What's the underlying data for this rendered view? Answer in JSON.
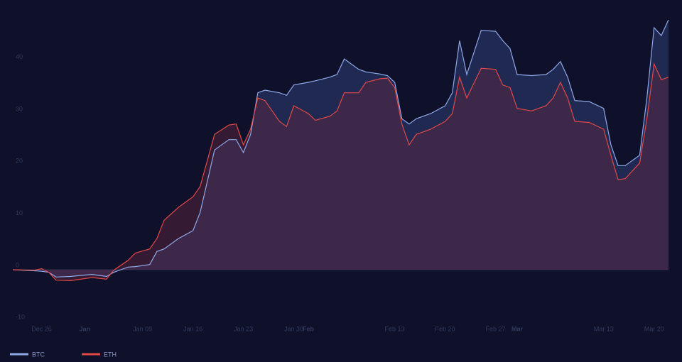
{
  "chart_data": {
    "type": "area",
    "x": [
      "Dec 22",
      "Dec 25",
      "Dec 26",
      "Dec 27",
      "Dec 28",
      "Dec 30",
      "Jan 02",
      "Jan 04",
      "Jan 05",
      "Jan 07",
      "Jan 08",
      "Jan 10",
      "Jan 11",
      "Jan 12",
      "Jan 14",
      "Jan 16",
      "Jan 17",
      "Jan 18",
      "Jan 19",
      "Jan 21",
      "Jan 22",
      "Jan 23",
      "Jan 24",
      "Jan 25",
      "Jan 26",
      "Jan 28",
      "Jan 29",
      "Jan 30",
      "Feb 01",
      "Feb 02",
      "Feb 04",
      "Feb 05",
      "Feb 06",
      "Feb 08",
      "Feb 09",
      "Feb 11",
      "Feb 12",
      "Feb 13",
      "Feb 14",
      "Feb 15",
      "Feb 16",
      "Feb 18",
      "Feb 20",
      "Feb 21",
      "Feb 22",
      "Feb 23",
      "Feb 25",
      "Feb 27",
      "Feb 28",
      "Feb 29",
      "Mar 01",
      "Mar 03",
      "Mar 05",
      "Mar 06",
      "Mar 07",
      "Mar 08",
      "Mar 09",
      "Mar 11",
      "Mar 13",
      "Mar 14",
      "Mar 15",
      "Mar 16",
      "Mar 18",
      "Mar 19",
      "Mar 20",
      "Mar 21",
      "Mar 22"
    ],
    "series": [
      {
        "name": "BTC",
        "color": "#8fa8e8",
        "values": [
          0,
          -0.2,
          -0.3,
          -0.5,
          -1.4,
          -1.3,
          -0.9,
          -1.3,
          -0.5,
          0.5,
          0.6,
          1,
          3.5,
          4,
          6,
          7.5,
          11,
          17,
          23,
          25,
          25,
          22.5,
          26,
          34,
          34.5,
          34,
          33.5,
          35.5,
          36,
          36.3,
          37,
          37.5,
          40.5,
          38.5,
          38,
          37.6,
          37.3,
          36,
          29,
          28,
          29,
          30,
          31.5,
          34,
          44,
          37.5,
          46,
          45.8,
          44,
          42.5,
          37.5,
          37.3,
          37.5,
          38.5,
          40,
          37,
          32.5,
          32.3,
          31,
          24,
          20,
          20,
          22,
          33,
          46.5,
          45,
          48
        ]
      },
      {
        "name": "ETH",
        "color": "#e04848",
        "values": [
          0,
          -0.1,
          0.2,
          -0.5,
          -2,
          -2.1,
          -1.5,
          -1.8,
          -0.1,
          1.8,
          3.2,
          4,
          6,
          9.5,
          12,
          14,
          16,
          21,
          26,
          27.8,
          28,
          24,
          27,
          33,
          32.5,
          28.5,
          27.5,
          31.5,
          30,
          28.7,
          29.5,
          30.5,
          34,
          34,
          36,
          36.7,
          36.8,
          35,
          28,
          24,
          26,
          27,
          28.5,
          30,
          37,
          33,
          38.7,
          38.5,
          35.5,
          35,
          31,
          30.5,
          31.5,
          33,
          36,
          33,
          28.5,
          28.3,
          27,
          22,
          17.3,
          17.5,
          20.5,
          29,
          39.5,
          36.5,
          37
        ]
      }
    ],
    "xlim": [
      "Dec 22",
      "Mar 22"
    ],
    "xticks": [
      "Dec 26",
      {
        "value": "Jan 01",
        "label": "Jan"
      },
      "Jan 09",
      "Jan 16",
      "Jan 23",
      "Jan 30",
      {
        "value": "Feb 01",
        "label": "Feb"
      },
      "Feb 13",
      "Feb 20",
      "Feb 27",
      {
        "value": "Mar 01",
        "label": "Mar"
      },
      "Mar 13",
      "Mar 20"
    ],
    "ylim": [
      -10.5,
      49.5
    ],
    "yticks": [
      -10,
      0,
      10,
      20,
      30,
      40
    ]
  }
}
